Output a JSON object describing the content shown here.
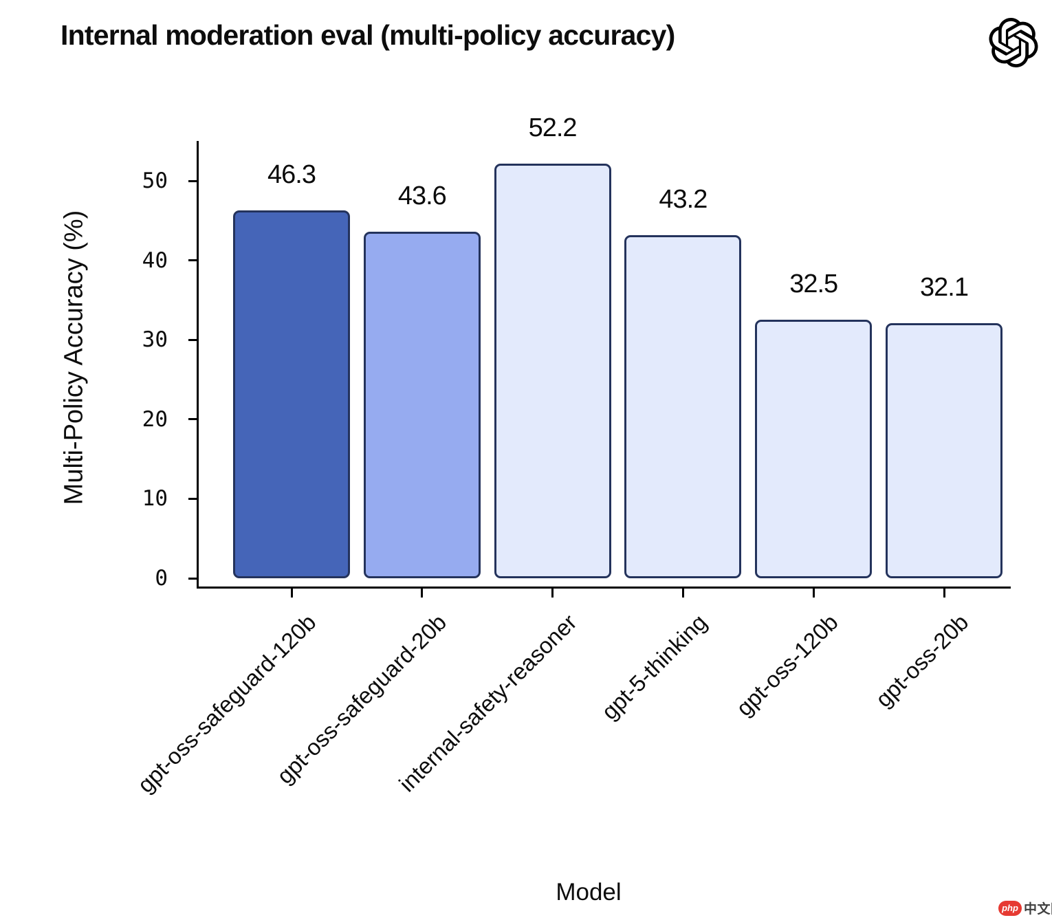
{
  "header": {
    "title": "Internal moderation eval (multi-policy accuracy)",
    "logo_icon": "openai-logo"
  },
  "watermark": {
    "badge_text": "php",
    "site_text": "中文网",
    "badge_color": "#e63a32"
  },
  "chart_data": {
    "type": "bar",
    "title": "Internal moderation eval (multi-policy accuracy)",
    "xlabel": "Model",
    "ylabel": "Multi-Policy Accuracy (%)",
    "categories": [
      "gpt-oss-safeguard-120b",
      "gpt-oss-safeguard-20b",
      "internal-safety-reasoner",
      "gpt-5-thinking",
      "gpt-oss-120b",
      "gpt-oss-20b"
    ],
    "values": [
      46.3,
      43.6,
      52.2,
      43.2,
      32.5,
      32.1
    ],
    "value_labels": [
      "46.3",
      "43.6",
      "52.2",
      "43.2",
      "32.5",
      "32.1"
    ],
    "bar_fill_colors": [
      "#4565b8",
      "#96abf0",
      "#e3eafc",
      "#e3eafc",
      "#e3eafc",
      "#e3eafc"
    ],
    "bar_edge_color": "#24335c",
    "axis_color": "#000000",
    "yticks": [
      0,
      10,
      20,
      30,
      40,
      50
    ],
    "ylim": [
      0,
      55
    ],
    "grid": false,
    "legend": null,
    "x_tick_rotation_deg": 45
  }
}
